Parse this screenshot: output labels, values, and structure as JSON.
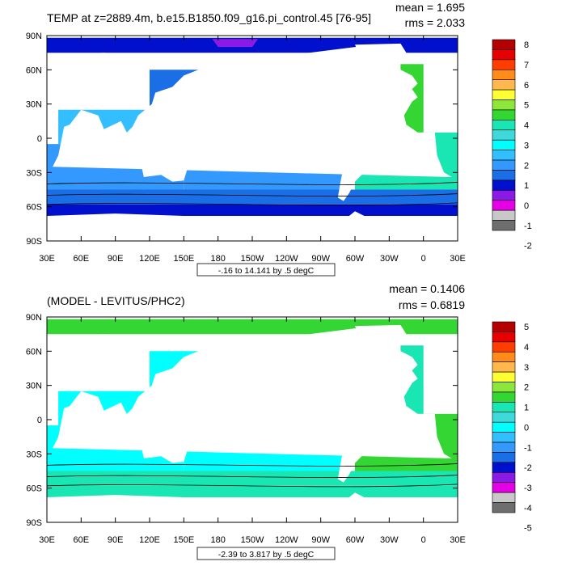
{
  "chart_data": [
    {
      "type": "heatmap",
      "title": "TEMP at z=2889.4m, b.e15.B1850.f09_g16.pi_control.45 [76-95]",
      "stats": {
        "mean": "mean = 1.695",
        "rms": "rms = 2.033"
      },
      "range_note": "-.16 to 14.141 by .5 degC",
      "x_ticks": [
        "30E",
        "60E",
        "90E",
        "120E",
        "150E",
        "180",
        "150W",
        "120W",
        "90W",
        "60W",
        "30W",
        "0",
        "30E"
      ],
      "y_ticks": [
        "90N",
        "60N",
        "30N",
        "0",
        "30S",
        "60S",
        "90S"
      ],
      "colorbar": {
        "labels": [
          "8",
          "7",
          "6",
          "5",
          "4",
          "3",
          "2",
          "1",
          "0",
          "-1",
          "-2"
        ],
        "colors": [
          "#b40000",
          "#e60000",
          "#ff3d00",
          "#ff8c1a",
          "#ffb84d",
          "#ffff33",
          "#8ce63c",
          "#33d633",
          "#1ae6b3",
          "#3fd9d9",
          "#00ffff",
          "#33bfff",
          "#3399ff",
          "#1a6fe6",
          "#0010cc",
          "#8c1ae6",
          "#e600e6",
          "#c8c8c8",
          "#6e6e6e"
        ]
      },
      "region_values": {
        "north_pacific": 1.25,
        "south_pacific": 1.75,
        "south_indian": 1.75,
        "north_indian": 2.25,
        "north_atlantic": 4.25,
        "south_atlantic": 3.75,
        "arctic": 0.75,
        "arctic_basin": -0.25,
        "southern_band": 1.25,
        "antarctic_rim": 0.25
      }
    },
    {
      "type": "heatmap",
      "title": "(MODEL - LEVITUS/PHC2)",
      "stats": {
        "mean": "mean = 0.1406",
        "rms": "rms = 0.6819"
      },
      "range_note": "-2.39 to 3.817 by .5 degC",
      "x_ticks": [
        "30E",
        "60E",
        "90E",
        "120E",
        "150E",
        "180",
        "150W",
        "120W",
        "90W",
        "60W",
        "30W",
        "0",
        "30E"
      ],
      "y_ticks": [
        "90N",
        "60N",
        "30N",
        "0",
        "30S",
        "60S",
        "90S"
      ],
      "colorbar": {
        "labels": [
          "5",
          "4",
          "3",
          "2",
          "1",
          "0",
          "-1",
          "-2",
          "-3",
          "-4",
          "-5"
        ],
        "colors": [
          "#b40000",
          "#e60000",
          "#ff3d00",
          "#ff8c1a",
          "#ffb84d",
          "#ffff33",
          "#8ce63c",
          "#33d633",
          "#1ae6b3",
          "#3fd9d9",
          "#00ffff",
          "#33bfff",
          "#3399ff",
          "#1a6fe6",
          "#0010cc",
          "#8c1ae6",
          "#e600e6",
          "#c8c8c8",
          "#6e6e6e"
        ]
      },
      "region_values": {
        "north_pacific": -0.25,
        "south_pacific": -0.25,
        "south_indian": -0.25,
        "north_indian": -0.25,
        "north_atlantic": 0.75,
        "south_atlantic": 1.25,
        "arctic": 1.25,
        "arctic_basin": 1.25,
        "southern_band": 0.75,
        "antarctic_rim": 0.75
      }
    }
  ]
}
